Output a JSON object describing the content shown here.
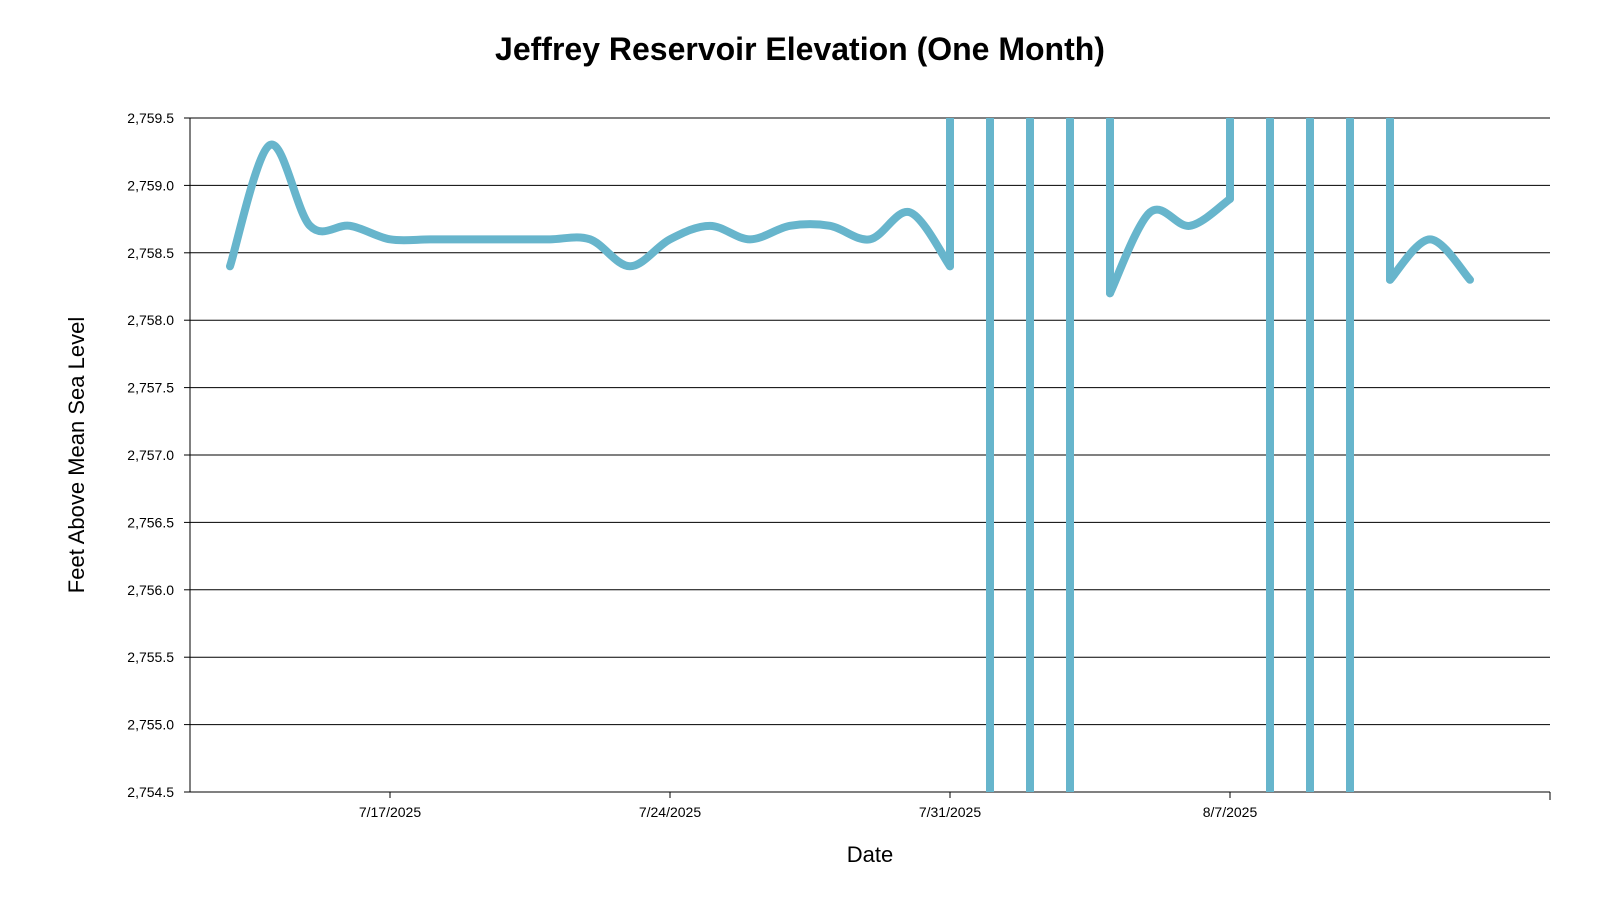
{
  "chart_data": {
    "type": "line",
    "title": "Jeffrey Reservoir Elevation (One Month)",
    "xlabel": "Date",
    "ylabel": "Feet Above Mean Sea Level",
    "ylim": [
      2754.5,
      2759.5
    ],
    "yticks": [
      2754.5,
      2755.0,
      2755.5,
      2756.0,
      2756.5,
      2757.0,
      2757.5,
      2758.0,
      2758.5,
      2759.0,
      2759.5
    ],
    "ytick_labels": [
      "2,754.5",
      "2,755.0",
      "2,755.5",
      "2,756.0",
      "2,756.5",
      "2,757.0",
      "2,757.5",
      "2,758.0",
      "2,758.5",
      "2,759.0",
      "2,759.5"
    ],
    "xlim": [
      "2025-07-12",
      "2025-08-15"
    ],
    "xticks": [
      "2025-07-17",
      "2025-07-24",
      "2025-07-31",
      "2025-08-07"
    ],
    "xtick_labels": [
      "7/17/2025",
      "7/24/2025",
      "7/31/2025",
      "8/7/2025"
    ],
    "grid": "horizontal",
    "line_color": "#67b5cc",
    "series": [
      {
        "x": [
          "2025-07-13",
          "2025-07-14",
          "2025-07-15",
          "2025-07-16",
          "2025-07-17",
          "2025-07-18",
          "2025-07-19",
          "2025-07-20",
          "2025-07-21",
          "2025-07-22",
          "2025-07-23",
          "2025-07-24",
          "2025-07-25",
          "2025-07-26",
          "2025-07-27",
          "2025-07-28",
          "2025-07-29",
          "2025-07-30",
          "2025-07-31",
          "2025-08-01",
          "2025-08-02",
          "2025-08-03",
          "2025-08-04",
          "2025-08-05",
          "2025-08-06",
          "2025-08-07",
          "2025-08-08",
          "2025-08-09",
          "2025-08-10",
          "2025-08-11",
          "2025-08-12",
          "2025-08-13"
        ],
        "y": [
          2758.4,
          2759.3,
          2758.7,
          2758.7,
          2758.6,
          2758.6,
          2758.6,
          2758.6,
          2758.6,
          2758.6,
          2758.4,
          2758.6,
          2758.7,
          2758.6,
          2758.7,
          2758.7,
          2758.6,
          2758.8,
          2758.4,
          null,
          null,
          null,
          2758.2,
          2758.8,
          2758.7,
          2758.9,
          null,
          null,
          null,
          2758.3,
          2758.6,
          2758.3
        ]
      }
    ]
  }
}
